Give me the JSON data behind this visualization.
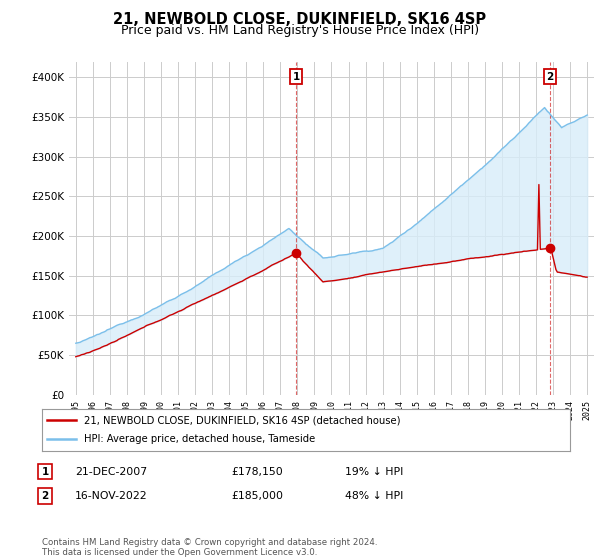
{
  "title": "21, NEWBOLD CLOSE, DUKINFIELD, SK16 4SP",
  "subtitle": "Price paid vs. HM Land Registry's House Price Index (HPI)",
  "ylim": [
    0,
    420000
  ],
  "yticks": [
    0,
    50000,
    100000,
    150000,
    200000,
    250000,
    300000,
    350000,
    400000
  ],
  "ytick_labels": [
    "£0",
    "£50K",
    "£100K",
    "£150K",
    "£200K",
    "£250K",
    "£300K",
    "£350K",
    "£400K"
  ],
  "hpi_color": "#7bbfea",
  "hpi_fill_color": "#d8edf9",
  "price_color": "#cc0000",
  "marker1_yr": 2007.92,
  "marker1_price": 178150,
  "marker1_date_str": "21-DEC-2007",
  "marker1_pct": "19%",
  "marker2_yr": 2022.87,
  "marker2_price": 185000,
  "marker2_date_str": "16-NOV-2022",
  "marker2_pct": "48%",
  "legend_line1": "21, NEWBOLD CLOSE, DUKINFIELD, SK16 4SP (detached house)",
  "legend_line2": "HPI: Average price, detached house, Tameside",
  "footer": "Contains HM Land Registry data © Crown copyright and database right 2024.\nThis data is licensed under the Open Government Licence v3.0.",
  "bg_color": "#ffffff",
  "grid_color": "#cccccc",
  "title_fontsize": 10.5,
  "subtitle_fontsize": 9,
  "tick_fontsize": 7.5
}
